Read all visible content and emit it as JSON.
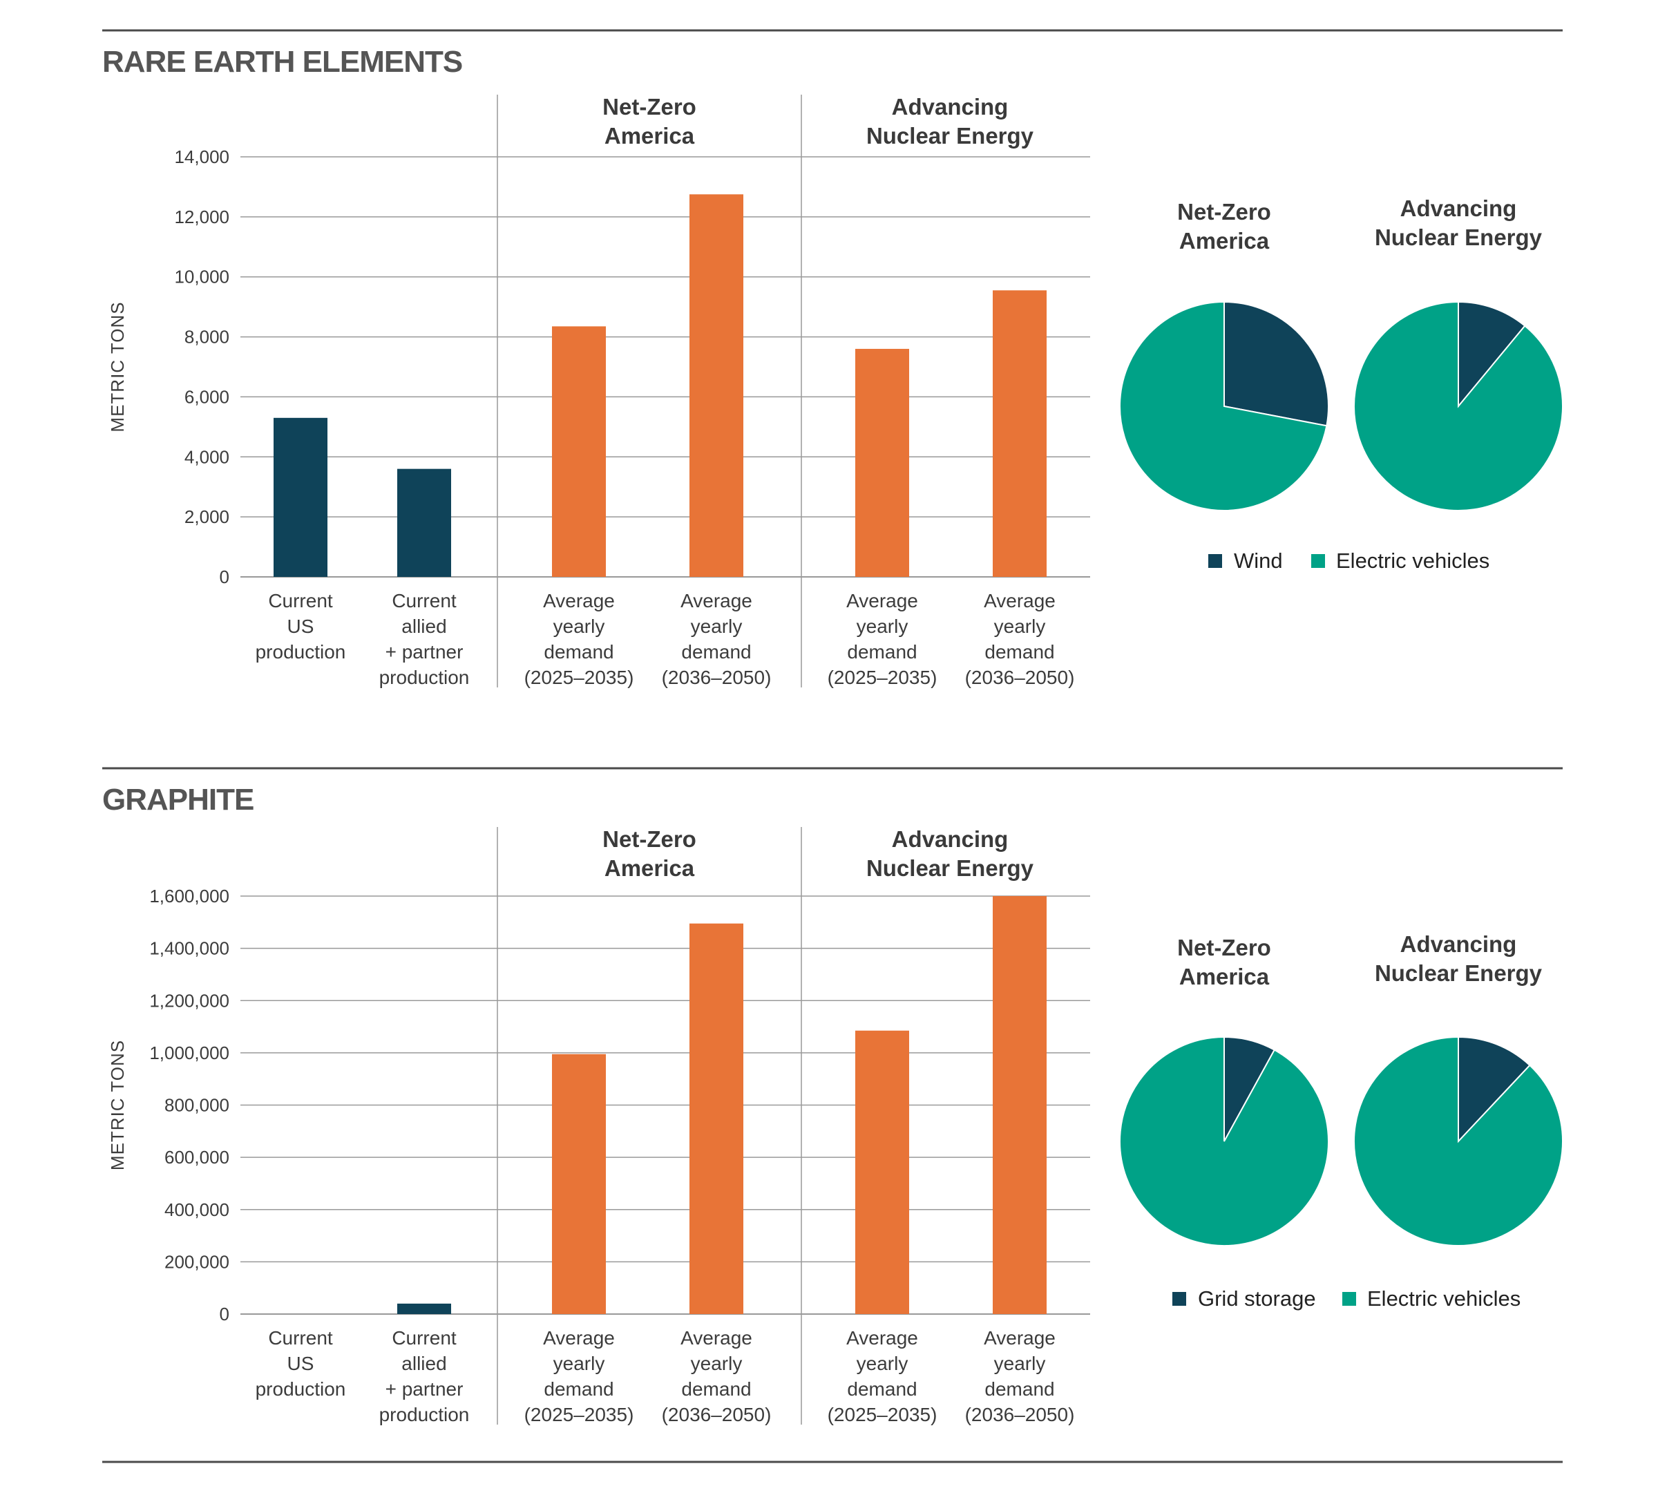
{
  "colors": {
    "production": "#0f4359",
    "demand": "#e87437",
    "pie_minor": "#0f4359",
    "pie_major": "#00a287",
    "grid": "#999999",
    "rule": "#4a4a4a"
  },
  "chart_data": [
    {
      "type": "bar",
      "title": "RARE EARTH ELEMENTS",
      "ylabel": "METRIC TONS",
      "ylim": [
        0,
        14000
      ],
      "yticks": [
        0,
        2000,
        4000,
        6000,
        8000,
        10000,
        12000,
        14000
      ],
      "ytick_labels": [
        "0",
        "2,000",
        "4,000",
        "6,000",
        "8,000",
        "10,000",
        "12,000",
        "14,000"
      ],
      "groups": [
        "",
        "Net-Zero America",
        "Advancing Nuclear Energy"
      ],
      "categories": [
        "Current US production",
        "Current allied + partner production",
        "Average yearly demand (2025–2035)",
        "Average yearly demand (2036–2050)",
        "Average yearly demand (2025–2035)",
        "Average yearly demand (2036–2050)"
      ],
      "category_lines": [
        [
          "Current",
          "US",
          "production"
        ],
        [
          "Current",
          "allied",
          "+ partner",
          "production"
        ],
        [
          "Average",
          "yearly",
          "demand",
          "(2025–2035)"
        ],
        [
          "Average",
          "yearly",
          "demand",
          "(2036–2050)"
        ],
        [
          "Average",
          "yearly",
          "demand",
          "(2025–2035)"
        ],
        [
          "Average",
          "yearly",
          "demand",
          "(2036–2050)"
        ]
      ],
      "values": [
        5300,
        3600,
        8350,
        12750,
        7600,
        9550
      ],
      "bar_kind": [
        "production",
        "production",
        "demand",
        "demand",
        "demand",
        "demand"
      ],
      "pies": [
        {
          "title": "Net-Zero America",
          "slices": [
            {
              "label": "Wind",
              "value": 28
            },
            {
              "label": "Electric vehicles",
              "value": 72
            }
          ]
        },
        {
          "title": "Advancing Nuclear Energy",
          "slices": [
            {
              "label": "Wind",
              "value": 11
            },
            {
              "label": "Electric vehicles",
              "value": 89
            }
          ]
        }
      ],
      "legend": [
        "Wind",
        "Electric vehicles"
      ]
    },
    {
      "type": "bar",
      "title": "GRAPHITE",
      "ylabel": "METRIC TONS",
      "ylim": [
        0,
        1600000
      ],
      "yticks": [
        0,
        200000,
        400000,
        600000,
        800000,
        1000000,
        1200000,
        1400000,
        1600000
      ],
      "ytick_labels": [
        "0",
        "200,000",
        "400,000",
        "600,000",
        "800,000",
        "1,000,000",
        "1,200,000",
        "1,400,000",
        "1,600,000"
      ],
      "groups": [
        "",
        "Net-Zero America",
        "Advancing Nuclear Energy"
      ],
      "categories": [
        "Current US production",
        "Current allied + partner production",
        "Average yearly demand (2025–2035)",
        "Average yearly demand (2036–2050)",
        "Average yearly demand (2025–2035)",
        "Average yearly demand (2036–2050)"
      ],
      "category_lines": [
        [
          "Current",
          "US",
          "production"
        ],
        [
          "Current",
          "allied",
          "+ partner",
          "production"
        ],
        [
          "Average",
          "yearly",
          "demand",
          "(2025–2035)"
        ],
        [
          "Average",
          "yearly",
          "demand",
          "(2036–2050)"
        ],
        [
          "Average",
          "yearly",
          "demand",
          "(2025–2035)"
        ],
        [
          "Average",
          "yearly",
          "demand",
          "(2036–2050)"
        ]
      ],
      "values": [
        0,
        40000,
        995000,
        1495000,
        1085000,
        1600000
      ],
      "bar_kind": [
        "production",
        "production",
        "demand",
        "demand",
        "demand",
        "demand"
      ],
      "pies": [
        {
          "title": "Net-Zero America",
          "slices": [
            {
              "label": "Grid storage",
              "value": 8
            },
            {
              "label": "Electric vehicles",
              "value": 92
            }
          ]
        },
        {
          "title": "Advancing Nuclear Energy",
          "slices": [
            {
              "label": "Grid storage",
              "value": 12
            },
            {
              "label": "Electric vehicles",
              "value": 88
            }
          ]
        }
      ],
      "legend": [
        "Grid storage",
        "Electric vehicles"
      ]
    }
  ]
}
